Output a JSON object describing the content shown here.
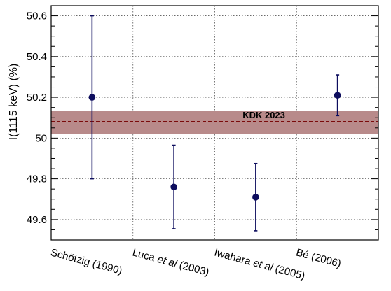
{
  "chart_data": {
    "type": "scatter",
    "ylabel": "I(1115 keV) (%)",
    "ylim": [
      49.5,
      50.65
    ],
    "yticks": [
      {
        "value": 49.6,
        "label": "49.6"
      },
      {
        "value": 49.8,
        "label": "49.8"
      },
      {
        "value": 50.0,
        "label": "50"
      },
      {
        "value": 50.2,
        "label": "50.2"
      },
      {
        "value": 50.4,
        "label": "50.4"
      },
      {
        "value": 50.6,
        "label": "50.6"
      }
    ],
    "grid": true,
    "points": [
      {
        "label_parts": [
          {
            "t": "Schötzig (1990)",
            "i": false
          }
        ],
        "value": 50.2,
        "err_low": 49.8,
        "err_high": 50.6
      },
      {
        "label_parts": [
          {
            "t": "Luca ",
            "i": false
          },
          {
            "t": "et al",
            "i": true
          },
          {
            "t": " (2003)",
            "i": false
          }
        ],
        "value": 49.76,
        "err_low": 49.555,
        "err_high": 49.965
      },
      {
        "label_parts": [
          {
            "t": "Iwahara ",
            "i": false
          },
          {
            "t": "et al",
            "i": true
          },
          {
            "t": " (2005)",
            "i": false
          }
        ],
        "value": 49.71,
        "err_low": 49.545,
        "err_high": 49.875
      },
      {
        "label_parts": [
          {
            "t": "Bé (2006)",
            "i": false
          }
        ],
        "value": 50.21,
        "err_low": 50.11,
        "err_high": 50.31
      }
    ],
    "reference": {
      "label": "KDK 2023",
      "value": 50.08,
      "band_low": 50.02,
      "band_high": 50.135
    },
    "colors": {
      "points": "#0d0d5e",
      "reference_line": "#7a0a0a",
      "reference_band": "#b88a8a",
      "reference_label": "#7a0a0a"
    }
  }
}
